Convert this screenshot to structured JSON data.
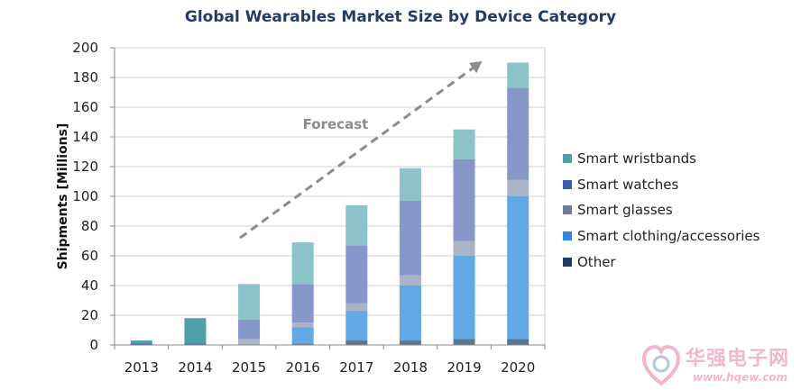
{
  "chart_data": {
    "type": "bar",
    "stacked": true,
    "title": "Global Wearables Market Size by Device Category",
    "ylabel": "Shipments [Millions]",
    "xlabel": "",
    "ylim": [
      0,
      200
    ],
    "yticks": [
      0,
      20,
      40,
      60,
      80,
      100,
      120,
      140,
      160,
      180,
      200
    ],
    "grid": true,
    "legend_position": "right",
    "categories": [
      "2013",
      "2014",
      "2015",
      "2016",
      "2017",
      "2018",
      "2019",
      "2020"
    ],
    "forecast_from": "2015",
    "annotation": "Forecast",
    "series": [
      {
        "name": "Other",
        "color": "#1f3d66",
        "forecast_color": "#5e7590",
        "values": [
          0,
          0,
          0,
          1,
          3,
          3,
          4,
          4
        ]
      },
      {
        "name": "Smart clothing/accessories",
        "color": "#2e86de",
        "forecast_color": "#62a8e5",
        "values": [
          0,
          0,
          0,
          11,
          20,
          37,
          56,
          96
        ]
      },
      {
        "name": "Smart glasses",
        "color": "#6b7f99",
        "forecast_color": "#a9b4c6",
        "values": [
          0,
          0,
          4,
          3,
          5,
          7,
          10,
          11
        ]
      },
      {
        "name": "Smart watches",
        "color": "#3a5fb0",
        "forecast_color": "#8897c9",
        "values": [
          1,
          1,
          13,
          26,
          39,
          50,
          55,
          62
        ]
      },
      {
        "name": "Smart wristbands",
        "color": "#4fa0a8",
        "forecast_color": "#8cc3c9",
        "values": [
          2,
          17,
          24,
          28,
          27,
          22,
          20,
          17
        ]
      }
    ]
  },
  "legend_order": [
    4,
    3,
    2,
    1,
    0
  ],
  "watermark": {
    "name": "华强电子网",
    "url": "www.hqew.com"
  }
}
